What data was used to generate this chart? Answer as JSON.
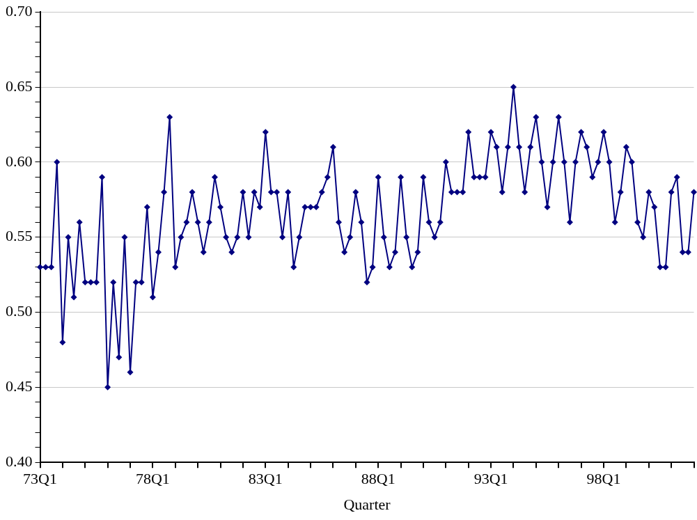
{
  "chart_data": {
    "type": "line",
    "xlabel": "Quarter",
    "categories": [
      "73Q1",
      null,
      null,
      null,
      null,
      null,
      null,
      null,
      null,
      null,
      null,
      null,
      null,
      null,
      null,
      null,
      null,
      null,
      null,
      null,
      "78Q1",
      null,
      null,
      null,
      null,
      null,
      null,
      null,
      null,
      null,
      null,
      null,
      null,
      null,
      null,
      null,
      null,
      null,
      null,
      null,
      "83Q1",
      null,
      null,
      null,
      null,
      null,
      null,
      null,
      null,
      null,
      null,
      null,
      null,
      null,
      null,
      null,
      null,
      null,
      null,
      null,
      "88Q1",
      null,
      null,
      null,
      null,
      null,
      null,
      null,
      null,
      null,
      null,
      null,
      null,
      null,
      null,
      null,
      null,
      null,
      null,
      null,
      "93Q1",
      null,
      null,
      null,
      null,
      null,
      null,
      null,
      null,
      null,
      null,
      null,
      null,
      null,
      null,
      null,
      null,
      null,
      null,
      null,
      "98Q1",
      null,
      null,
      null,
      null,
      null,
      null,
      null,
      null,
      null,
      null,
      null,
      null,
      null,
      null,
      null,
      null
    ],
    "series": [
      {
        "color": "#000080",
        "values": [
          0.53,
          0.53,
          0.53,
          0.6,
          0.48,
          0.55,
          0.51,
          0.56,
          0.52,
          0.52,
          0.52,
          0.59,
          0.45,
          0.52,
          0.47,
          0.55,
          0.46,
          0.52,
          0.52,
          0.57,
          0.51,
          0.54,
          0.58,
          0.63,
          0.53,
          0.55,
          0.56,
          0.58,
          0.56,
          0.54,
          0.56,
          0.59,
          0.57,
          0.55,
          0.54,
          0.55,
          0.58,
          0.55,
          0.58,
          0.57,
          0.62,
          0.58,
          0.58,
          0.55,
          0.58,
          0.53,
          0.55,
          0.57,
          0.57,
          0.57,
          0.58,
          0.59,
          0.61,
          0.56,
          0.54,
          0.55,
          0.58,
          0.56,
          0.52,
          0.53,
          0.59,
          0.55,
          0.53,
          0.54,
          0.59,
          0.55,
          0.53,
          0.54,
          0.59,
          0.56,
          0.55,
          0.56,
          0.6,
          0.58,
          0.58,
          0.58,
          0.62,
          0.59,
          0.59,
          0.59,
          0.62,
          0.61,
          0.58,
          0.61,
          0.65,
          0.61,
          0.58,
          0.61,
          0.63,
          0.6,
          0.57,
          0.6,
          0.63,
          0.6,
          0.56,
          0.6,
          0.62,
          0.61,
          0.59,
          0.6,
          0.62,
          0.6,
          0.56,
          0.58,
          0.61,
          0.6,
          0.56,
          0.55,
          0.58,
          0.57,
          0.53,
          0.53,
          0.58,
          0.59,
          0.54,
          0.54,
          0.58
        ]
      }
    ],
    "ylim": [
      0.4,
      0.7
    ],
    "yticks": [
      {
        "value": 0.4,
        "label": "0.40"
      },
      {
        "value": 0.41,
        "label": null
      },
      {
        "value": 0.42,
        "label": null
      },
      {
        "value": 0.43,
        "label": null
      },
      {
        "value": 0.44,
        "label": null
      },
      {
        "value": 0.45,
        "label": "0.45"
      },
      {
        "value": 0.46,
        "label": null
      },
      {
        "value": 0.47,
        "label": null
      },
      {
        "value": 0.48,
        "label": null
      },
      {
        "value": 0.49,
        "label": null
      },
      {
        "value": 0.5,
        "label": "0.50"
      },
      {
        "value": 0.51,
        "label": null
      },
      {
        "value": 0.52,
        "label": null
      },
      {
        "value": 0.53,
        "label": null
      },
      {
        "value": 0.54,
        "label": null
      },
      {
        "value": 0.55,
        "label": "0.55"
      },
      {
        "value": 0.56,
        "label": null
      },
      {
        "value": 0.57,
        "label": null
      },
      {
        "value": 0.58,
        "label": null
      },
      {
        "value": 0.59,
        "label": null
      },
      {
        "value": 0.6,
        "label": "0.60"
      },
      {
        "value": 0.61,
        "label": null
      },
      {
        "value": 0.62,
        "label": null
      },
      {
        "value": 0.63,
        "label": null
      },
      {
        "value": 0.64,
        "label": null
      },
      {
        "value": 0.65,
        "label": "0.65"
      },
      {
        "value": 0.66,
        "label": null
      },
      {
        "value": 0.67,
        "label": null
      },
      {
        "value": 0.68,
        "label": null
      },
      {
        "value": 0.69,
        "label": null
      },
      {
        "value": 0.7,
        "label": "0.70"
      }
    ],
    "grid": "y",
    "legend": false,
    "marker": "diamond",
    "line_style": "solid"
  }
}
